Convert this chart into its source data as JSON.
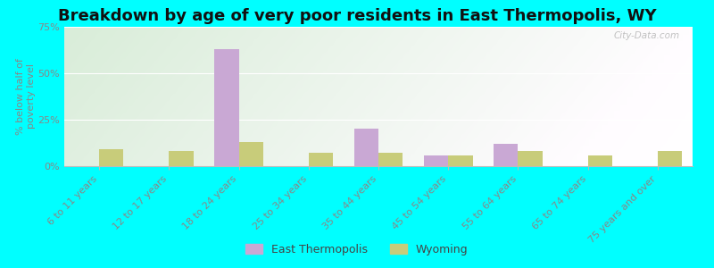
{
  "title": "Breakdown by age of very poor residents in East Thermopolis, WY",
  "ylabel": "% below half of\npoverty level",
  "categories": [
    "6 to 11 years",
    "12 to 17 years",
    "18 to 24 years",
    "25 to 34 years",
    "35 to 44 years",
    "45 to 54 years",
    "55 to 64 years",
    "65 to 74 years",
    "75 years and over"
  ],
  "east_thermopolis": [
    0,
    0,
    63,
    0,
    20,
    6,
    12,
    0,
    0
  ],
  "wyoming": [
    9,
    8,
    13,
    7,
    7,
    6,
    8,
    6,
    8
  ],
  "et_color": "#c9a8d4",
  "wy_color": "#c8cc7a",
  "background_color": "#00ffff",
  "ylim": [
    0,
    75
  ],
  "yticks": [
    0,
    25,
    50,
    75
  ],
  "ytick_labels": [
    "0%",
    "25%",
    "50%",
    "75%"
  ],
  "title_fontsize": 13,
  "axis_label_fontsize": 8,
  "tick_fontsize": 8,
  "legend_labels": [
    "East Thermopolis",
    "Wyoming"
  ],
  "watermark": "City-Data.com",
  "bar_width": 0.35
}
